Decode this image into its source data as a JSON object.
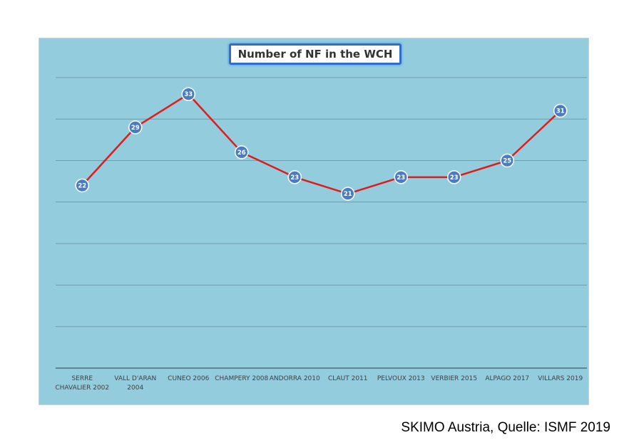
{
  "chart_data": {
    "type": "line",
    "title": "Number of NF in the WCH",
    "categories": [
      "SERRE CHAVALIER 2002",
      "VALL D'ARAN 2004",
      "CUNEO 2006",
      "CHAMPERY 2008",
      "ANDORRA 2010",
      "CLAUT 2011",
      "PELVOUX 2013",
      "VERBIER 2015",
      "ALPAGO 2017",
      "VILLARS 2019"
    ],
    "tick_lines": [
      [
        "SERRE",
        "CHAVALIER 2002"
      ],
      [
        "VALL D'ARAN",
        "2004"
      ],
      [
        "CUNEO 2006"
      ],
      [
        "CHAMPERY 2008"
      ],
      [
        "ANDORRA 2010"
      ],
      [
        "CLAUT 2011"
      ],
      [
        "PELVOUX 2013"
      ],
      [
        "VERBIER 2015"
      ],
      [
        "ALPAGO 2017"
      ],
      [
        "VILLARS 2019"
      ]
    ],
    "values": [
      22,
      29,
      33,
      26,
      23,
      21,
      23,
      23,
      25,
      31
    ],
    "ylim": [
      0,
      40
    ],
    "y_gridlines": [
      5,
      10,
      15,
      20,
      25,
      30,
      35
    ],
    "y_tick_labels_shown": false,
    "grid": true,
    "legend": "none",
    "data_labels": true,
    "colors": {
      "line": "#e01b1b",
      "marker": "#4a7cc1",
      "marker_border": "#ffffff",
      "plot_background": "#93cddd",
      "gridline": "#6f9cab",
      "axis": "#4d6f7a"
    }
  },
  "footer": {
    "source_text": "SKIMO Austria, Quelle: ISMF 2019"
  }
}
